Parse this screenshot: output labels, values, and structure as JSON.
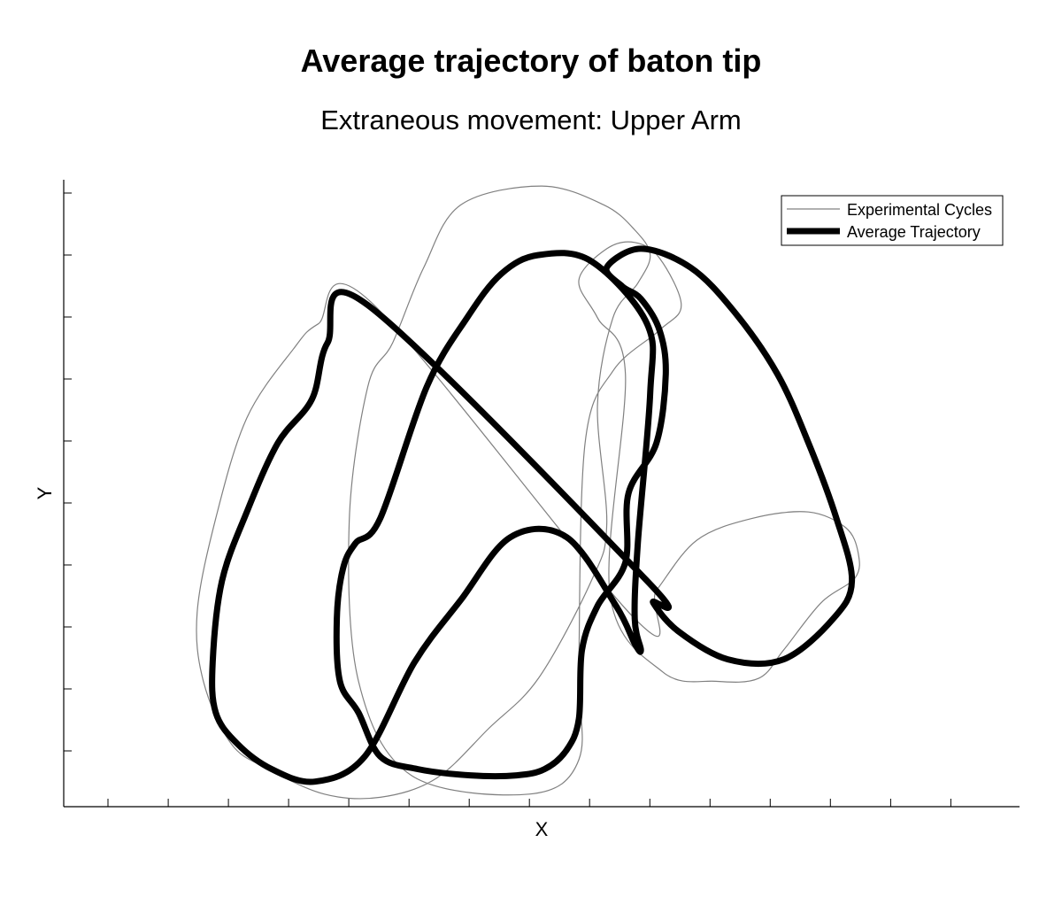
{
  "chart_data": {
    "type": "line",
    "title": "Average trajectory of baton tip",
    "subtitle": "Extraneous movement: Upper Arm",
    "xlabel": "X",
    "ylabel": "Y",
    "tick_labels_shown": false,
    "grid": false,
    "legend": {
      "placement": "top-right",
      "entries": [
        "Experimental Cycles",
        "Average Trajectory"
      ]
    },
    "xlim": [
      0,
      15.4
    ],
    "ylim": [
      0,
      10
    ],
    "series": [
      {
        "name": "Average Trajectory",
        "style": "thick-black",
        "color": "#000000",
        "x": [
          4.9,
          4.25,
          4.0,
          3.45,
          2.95,
          2.55,
          2.4,
          2.45,
          2.8,
          3.35,
          4.05,
          4.85,
          5.65,
          6.4,
          7.2,
          8.1,
          8.9,
          9.2,
          9.3,
          9.2,
          9.25,
          9.45,
          9.4,
          8.5,
          7.65,
          7.05,
          6.5,
          5.85,
          5.1,
          4.7,
          4.5,
          4.4,
          4.45,
          4.75,
          5.1,
          5.7,
          6.55,
          7.3,
          7.75,
          8.1,
          8.3,
          8.35,
          8.6,
          9.05,
          9.1,
          9.55,
          9.7,
          9.6,
          9.3,
          9.0,
          8.75,
          9.3,
          10.1,
          10.8,
          11.5,
          12.0,
          12.45,
          12.7,
          12.4,
          11.6,
          10.7,
          9.9,
          9.5,
          9.4
        ],
        "y": [
          8.0,
          7.4,
          6.5,
          5.8,
          4.7,
          3.6,
          2.3,
          1.5,
          1.0,
          0.6,
          0.4,
          0.8,
          2.3,
          3.3,
          4.3,
          4.3,
          3.2,
          2.6,
          2.5,
          3.0,
          4.2,
          6.6,
          7.7,
          8.7,
          8.8,
          8.5,
          7.8,
          6.7,
          4.6,
          4.2,
          3.8,
          3.0,
          2.0,
          1.5,
          0.8,
          0.6,
          0.5,
          0.5,
          0.6,
          0.9,
          1.4,
          2.5,
          3.2,
          3.9,
          5.0,
          5.8,
          6.9,
          7.6,
          8.1,
          8.3,
          8.6,
          8.9,
          8.6,
          7.9,
          6.9,
          5.8,
          4.6,
          3.6,
          3.0,
          2.35,
          2.35,
          2.8,
          3.25,
          3.6
        ]
      },
      {
        "name": "Experimental Cycles",
        "style": "thin-gray",
        "color": "#808080",
        "x": [
          4.95,
          4.1,
          3.7,
          2.95,
          2.45,
          2.15,
          2.25,
          2.7,
          3.3,
          4.2,
          5.1,
          6.0,
          6.85,
          7.65,
          8.5,
          8.75,
          8.6,
          8.85,
          9.25,
          9.45,
          9.2,
          8.7,
          7.7,
          6.4,
          5.8,
          5.3,
          4.9,
          4.6,
          4.75,
          5.6,
          7.5,
          8.3,
          8.3,
          8.4,
          8.85,
          9.6,
          9.95,
          9.6,
          9.2,
          8.75,
          8.3,
          8.6,
          9.05,
          8.8,
          9.65,
          10.5,
          11.2,
          11.6,
          12.2,
          12.75,
          12.8,
          12.6,
          12.0,
          11.1,
          10.2,
          9.55,
          9.2
        ],
        "y": [
          8.05,
          7.7,
          7.3,
          6.2,
          4.6,
          3.1,
          2.0,
          1.0,
          0.6,
          0.2,
          0.15,
          0.45,
          1.25,
          2.05,
          3.6,
          4.5,
          6.4,
          7.8,
          8.35,
          8.8,
          9.2,
          9.6,
          9.9,
          9.6,
          8.6,
          7.4,
          6.7,
          4.55,
          2.0,
          0.5,
          0.2,
          0.75,
          2.3,
          5.8,
          6.95,
          7.6,
          8.0,
          8.75,
          9.0,
          8.9,
          8.4,
          7.8,
          6.9,
          3.4,
          2.15,
          2.0,
          2.05,
          2.5,
          3.25,
          3.65,
          4.05,
          4.45,
          4.7,
          4.6,
          4.25,
          3.45,
          3.0
        ]
      }
    ]
  }
}
